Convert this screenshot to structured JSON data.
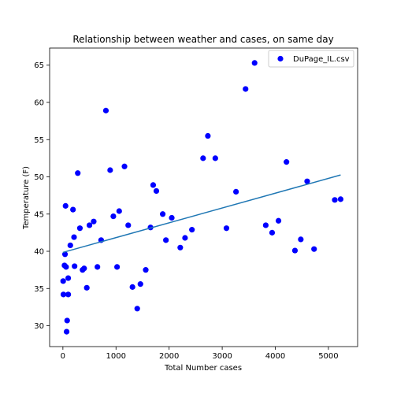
{
  "chart_data": {
    "type": "scatter",
    "title": "Relationship between weather and cases, on same day",
    "xlabel": "Total Number cases",
    "ylabel": "Temperature (F)",
    "xlim": [
      -250,
      5550
    ],
    "ylim": [
      27.2,
      67.3
    ],
    "x_ticks": [
      0,
      1000,
      2000,
      3000,
      4000,
      5000
    ],
    "y_ticks": [
      30,
      35,
      40,
      45,
      50,
      55,
      60,
      65
    ],
    "grid": false,
    "legend_position": "top-right",
    "series": [
      {
        "name": "DuPage_IL.csv",
        "color": "#0000ff",
        "points": [
          [
            5,
            36.0
          ],
          [
            10,
            34.2
          ],
          [
            30,
            38.1
          ],
          [
            40,
            39.6
          ],
          [
            50,
            46.1
          ],
          [
            60,
            37.9
          ],
          [
            80,
            30.7
          ],
          [
            70,
            29.2
          ],
          [
            100,
            36.4
          ],
          [
            100,
            34.2
          ],
          [
            140,
            40.8
          ],
          [
            190,
            45.6
          ],
          [
            210,
            41.9
          ],
          [
            220,
            38.0
          ],
          [
            280,
            50.5
          ],
          [
            320,
            43.1
          ],
          [
            370,
            37.5
          ],
          [
            400,
            37.7
          ],
          [
            450,
            35.1
          ],
          [
            500,
            43.5
          ],
          [
            580,
            44.0
          ],
          [
            650,
            37.9
          ],
          [
            720,
            41.5
          ],
          [
            810,
            58.9
          ],
          [
            890,
            50.9
          ],
          [
            950,
            44.7
          ],
          [
            1020,
            37.9
          ],
          [
            1060,
            45.4
          ],
          [
            1160,
            51.4
          ],
          [
            1230,
            43.5
          ],
          [
            1310,
            35.2
          ],
          [
            1400,
            32.3
          ],
          [
            1460,
            35.6
          ],
          [
            1560,
            37.5
          ],
          [
            1650,
            43.2
          ],
          [
            1700,
            48.9
          ],
          [
            1760,
            48.1
          ],
          [
            1880,
            45.0
          ],
          [
            1940,
            41.5
          ],
          [
            2050,
            44.5
          ],
          [
            2210,
            40.5
          ],
          [
            2300,
            41.8
          ],
          [
            2430,
            42.9
          ],
          [
            2640,
            52.5
          ],
          [
            2730,
            55.5
          ],
          [
            2870,
            52.5
          ],
          [
            3080,
            43.1
          ],
          [
            3260,
            48.0
          ],
          [
            3440,
            61.8
          ],
          [
            3610,
            65.3
          ],
          [
            3820,
            43.5
          ],
          [
            3940,
            42.5
          ],
          [
            4060,
            44.1
          ],
          [
            4210,
            52.0
          ],
          [
            4370,
            40.1
          ],
          [
            4480,
            41.6
          ],
          [
            4600,
            49.4
          ],
          [
            4730,
            40.3
          ],
          [
            5120,
            46.9
          ],
          [
            5230,
            47.0
          ]
        ]
      }
    ],
    "trendline": {
      "color": "#1f77b4",
      "x": [
        0,
        5230
      ],
      "y": [
        39.85,
        50.25
      ]
    }
  }
}
